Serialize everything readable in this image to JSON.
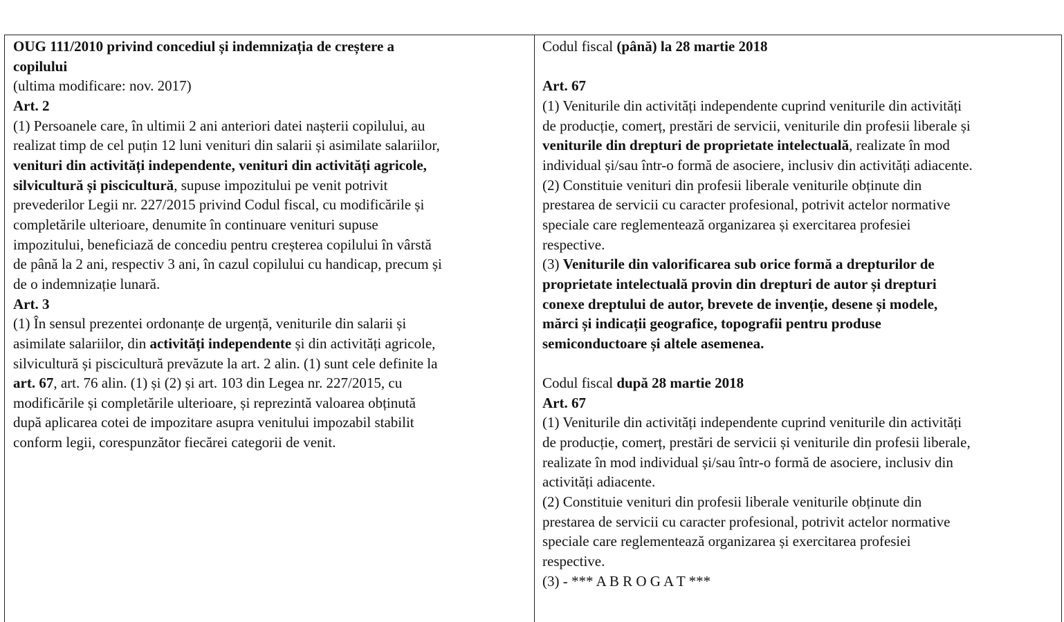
{
  "left": {
    "lines": [
      [
        {
          "t": "OUG 111/2010 privind concediul și indemnizația de creștere a",
          "b": true
        }
      ],
      [
        {
          "t": "copilului",
          "b": true
        }
      ],
      [
        {
          "t": "(ultima modificare: nov. 2017)"
        }
      ],
      [
        {
          "t": "Art. 2",
          "b": true
        }
      ],
      [
        {
          "t": "(1) Persoanele care, în ultimii 2 ani anteriori datei nașterii copilului, au"
        }
      ],
      [
        {
          "t": "realizat timp de cel puțin 12 luni venituri din salarii și asimilate salariilor,"
        }
      ],
      [
        {
          "t": "venituri din activități independente, venituri din activități agricole,",
          "b": true
        }
      ],
      [
        {
          "t": "silvicultură și piscicultură",
          "b": true
        },
        {
          "t": ", supuse impozitului pe venit potrivit"
        }
      ],
      [
        {
          "t": "prevederilor Legii nr. 227/2015 privind Codul fiscal, cu modificările și"
        }
      ],
      [
        {
          "t": "completările ulterioare, denumite în continuare venituri supuse"
        }
      ],
      [
        {
          "t": "impozitului, beneficiază de concediu pentru creșterea copilului în vârstă"
        }
      ],
      [
        {
          "t": "de până la 2 ani, respectiv 3 ani, în cazul copilului cu handicap, precum și"
        }
      ],
      [
        {
          "t": "de o indemnizație lunară."
        }
      ],
      [
        {
          "t": "Art. 3",
          "b": true
        }
      ],
      [
        {
          "t": "(1) În sensul prezentei ordonanțe de urgență, veniturile din salarii și"
        }
      ],
      [
        {
          "t": "asimilate salariilor, din "
        },
        {
          "t": "activități independente",
          "b": true
        },
        {
          "t": " și din activități agricole,"
        }
      ],
      [
        {
          "t": "silvicultură și piscicultură prevăzute la art. 2 alin. (1) sunt cele definite la"
        }
      ],
      [
        {
          "t": "art. 67",
          "b": true
        },
        {
          "t": ", art. 76 alin. (1) și (2) și art. 103 din Legea nr. 227/2015, cu"
        }
      ],
      [
        {
          "t": "modificările și completările ulterioare, și reprezintă valoarea obținută"
        }
      ],
      [
        {
          "t": "după aplicarea cotei de impozitare asupra venitului impozabil stabilit"
        }
      ],
      [
        {
          "t": "conform legii, corespunzător fiecărei categorii de venit."
        }
      ]
    ]
  },
  "right": {
    "lines": [
      [
        {
          "t": "Codul fiscal "
        },
        {
          "t": "(până) la 28 martie 2018",
          "b": true
        }
      ],
      [],
      [
        {
          "t": "Art. 67",
          "b": true
        }
      ],
      [
        {
          "t": "(1) Veniturile din activități independente cuprind veniturile din activități"
        }
      ],
      [
        {
          "t": "de producție, comerț, prestări de servicii, veniturile din profesii liberale și"
        }
      ],
      [
        {
          "t": "veniturile din drepturi de proprietate intelectuală",
          "b": true
        },
        {
          "t": ", realizate în mod"
        }
      ],
      [
        {
          "t": "individual și/sau într-o formă de asociere, inclusiv din activități adiacente."
        }
      ],
      [
        {
          "t": "(2) Constituie venituri din profesii liberale veniturile obținute din"
        }
      ],
      [
        {
          "t": "prestarea de servicii cu caracter profesional, potrivit actelor normative"
        }
      ],
      [
        {
          "t": "speciale care reglementează organizarea și exercitarea profesiei"
        }
      ],
      [
        {
          "t": "respective."
        }
      ],
      [
        {
          "t": "(3) "
        },
        {
          "t": "Veniturile din valorificarea sub orice formă a drepturilor de",
          "b": true
        }
      ],
      [
        {
          "t": "proprietate intelectuală provin din drepturi de autor și drepturi",
          "b": true
        }
      ],
      [
        {
          "t": "conexe dreptului de autor, brevete de invenție, desene și modele,",
          "b": true
        }
      ],
      [
        {
          "t": "mărci și indicații geografice, topografii pentru produse",
          "b": true
        }
      ],
      [
        {
          "t": "semiconductoare și altele asemenea.",
          "b": true
        }
      ],
      [],
      [
        {
          "t": "Codul fiscal "
        },
        {
          "t": "după 28 martie 2018",
          "b": true
        }
      ],
      [
        {
          "t": "Art. 67",
          "b": true
        }
      ],
      [
        {
          "t": "(1) Veniturile din activități independente cuprind veniturile din activități"
        }
      ],
      [
        {
          "t": "de producție, comerț, prestări de servicii și veniturile din profesii liberale,"
        }
      ],
      [
        {
          "t": "realizate în mod individual și/sau într-o formă de asociere, inclusiv din"
        }
      ],
      [
        {
          "t": "activități adiacente."
        }
      ],
      [
        {
          "t": "(2) Constituie venituri din profesii liberale veniturile obținute din"
        }
      ],
      [
        {
          "t": "prestarea de servicii cu caracter profesional, potrivit actelor normative"
        }
      ],
      [
        {
          "t": "speciale care reglementează organizarea și exercitarea profesiei"
        }
      ],
      [
        {
          "t": "respective."
        }
      ],
      [
        {
          "t": "(3) - *** A B R O G A T ***"
        }
      ]
    ]
  }
}
